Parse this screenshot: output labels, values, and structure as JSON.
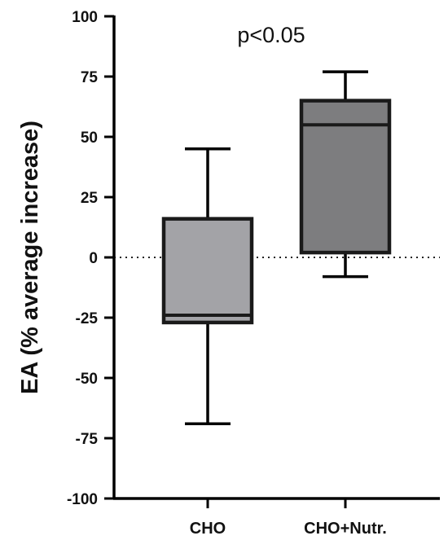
{
  "chart_data": {
    "type": "box",
    "title": "",
    "ylabel": "EA (% average increase)",
    "xlabel": "",
    "ylim": [
      -100,
      100
    ],
    "yticks": [
      -100,
      -75,
      -50,
      -25,
      0,
      25,
      50,
      75,
      100
    ],
    "yticks_labels": [
      "-100",
      "-75",
      "-50",
      "-25",
      "0",
      "25",
      "50",
      "75",
      "100"
    ],
    "categories": [
      "CHO",
      "CHO+Nutr."
    ],
    "boxes": [
      {
        "category": "CHO",
        "min": -69,
        "q1": -27,
        "median": -24,
        "q3": 16,
        "max": 45,
        "color": "#a3a3a7"
      },
      {
        "category": "CHO+Nutr.",
        "min": -8,
        "q1": 2,
        "median": 55,
        "q3": 65,
        "max": 77,
        "color": "#7d7d7f"
      }
    ],
    "reference_line": {
      "y": 0,
      "style": "dotted"
    },
    "annotation": "p<0.05",
    "grid": false,
    "legend": "none"
  }
}
